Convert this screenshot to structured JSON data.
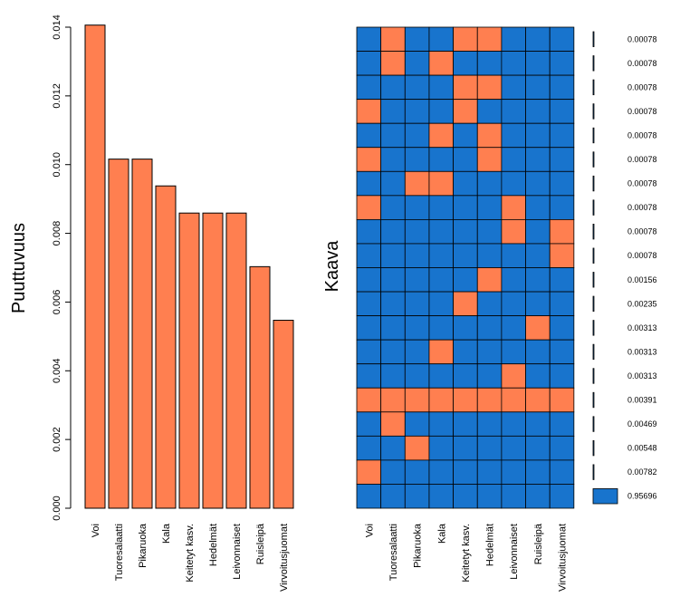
{
  "chart_data": [
    {
      "type": "bar",
      "name": "missingness-bars",
      "categories": [
        "Voi",
        "Tuoresalaatti",
        "Pikaruoka",
        "Kala",
        "Keitetyt kasv.",
        "Hedelmät",
        "Leivonnaiset",
        "Ruisleipä",
        "Virvoitusjuomat"
      ],
      "values": [
        0.01406,
        0.01016,
        0.01016,
        0.00938,
        0.00859,
        0.00859,
        0.00859,
        0.00703,
        0.00547
      ],
      "ylabel": "Puuttuvuus",
      "xlabel": "",
      "ylim": [
        0,
        0.014
      ],
      "yticks": [
        "0.000",
        "0.002",
        "0.004",
        "0.006",
        "0.008",
        "0.010",
        "0.012",
        "0.014"
      ],
      "ytick_values": [
        0,
        0.002,
        0.004,
        0.006,
        0.008,
        0.01,
        0.012,
        0.014
      ],
      "bar_color": "#FF7F50"
    },
    {
      "type": "heatmap",
      "name": "missingness-patterns",
      "ylabel": "Kaava",
      "columns": [
        "Voi",
        "Tuoresalaatti",
        "Pikaruoka",
        "Kala",
        "Keitetyt kasv.",
        "Hedelmät",
        "Leivonnaiset",
        "Ruisleipä",
        "Virvoitusjuomat"
      ],
      "rows": [
        [
          0,
          1,
          0,
          0,
          1,
          1,
          0,
          0,
          0
        ],
        [
          0,
          1,
          0,
          1,
          0,
          0,
          0,
          0,
          0
        ],
        [
          0,
          0,
          0,
          0,
          1,
          1,
          0,
          0,
          0
        ],
        [
          1,
          0,
          0,
          0,
          1,
          0,
          0,
          0,
          0
        ],
        [
          0,
          0,
          0,
          1,
          0,
          1,
          0,
          0,
          0
        ],
        [
          1,
          0,
          0,
          0,
          0,
          1,
          0,
          0,
          0
        ],
        [
          0,
          0,
          1,
          1,
          0,
          0,
          0,
          0,
          0
        ],
        [
          1,
          0,
          0,
          0,
          0,
          0,
          1,
          0,
          0
        ],
        [
          0,
          0,
          0,
          0,
          0,
          0,
          1,
          0,
          1
        ],
        [
          0,
          0,
          0,
          0,
          0,
          0,
          0,
          0,
          1
        ],
        [
          0,
          0,
          0,
          0,
          0,
          1,
          0,
          0,
          0
        ],
        [
          0,
          0,
          0,
          0,
          1,
          0,
          0,
          0,
          0
        ],
        [
          0,
          0,
          0,
          0,
          0,
          0,
          0,
          1,
          0
        ],
        [
          0,
          0,
          0,
          1,
          0,
          0,
          0,
          0,
          0
        ],
        [
          0,
          0,
          0,
          0,
          0,
          0,
          1,
          0,
          0
        ],
        [
          1,
          1,
          1,
          1,
          1,
          1,
          1,
          1,
          1
        ],
        [
          0,
          1,
          0,
          0,
          0,
          0,
          0,
          0,
          0
        ],
        [
          0,
          0,
          1,
          0,
          0,
          0,
          0,
          0,
          0
        ],
        [
          1,
          0,
          0,
          0,
          0,
          0,
          0,
          0,
          0
        ],
        [
          0,
          0,
          0,
          0,
          0,
          0,
          0,
          0,
          0
        ]
      ],
      "proportions": [
        "0.00078",
        "0.00078",
        "0.00078",
        "0.00078",
        "0.00078",
        "0.00078",
        "0.00078",
        "0.00078",
        "0.00078",
        "0.00078",
        "0.00156",
        "0.00235",
        "0.00313",
        "0.00313",
        "0.00313",
        "0.00391",
        "0.00469",
        "0.00548",
        "0.00782",
        "0.95696"
      ],
      "proportion_values": [
        0.00078,
        0.00078,
        0.00078,
        0.00078,
        0.00078,
        0.00078,
        0.00078,
        0.00078,
        0.00078,
        0.00078,
        0.00156,
        0.00235,
        0.00313,
        0.00313,
        0.00313,
        0.00391,
        0.00469,
        0.00548,
        0.00782,
        0.95696
      ],
      "missing_color": "#FF7F50",
      "observed_color": "#1874CD"
    }
  ]
}
